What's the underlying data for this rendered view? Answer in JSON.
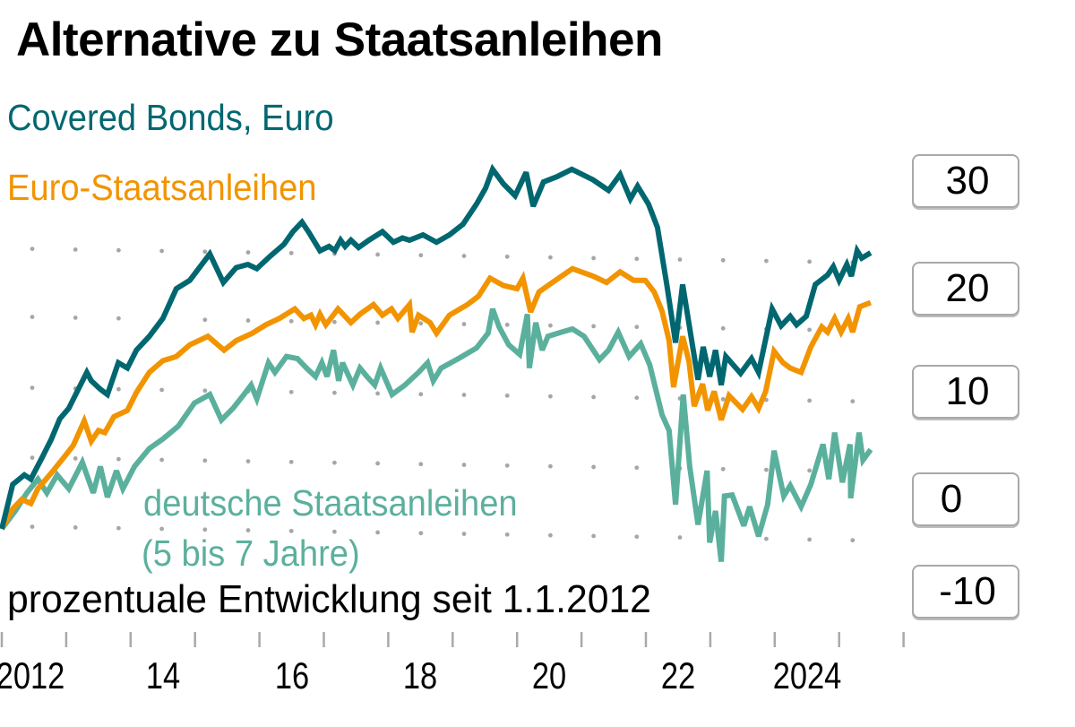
{
  "title": "Alternative zu Staatsanleihen",
  "subtitle": "prozentuale Entwicklung seit 1.1.2012",
  "chart_data": {
    "type": "line",
    "title": "Alternative zu Staatsanleihen",
    "ylabel": "prozentuale Entwicklung seit 1.1.2012",
    "xlim": [
      2012,
      2026
    ],
    "ylim": [
      -10,
      35
    ],
    "x_tick_labels": [
      {
        "year": 2012,
        "label": "2012"
      },
      {
        "year": 2014,
        "label": "14"
      },
      {
        "year": 2016,
        "label": "16"
      },
      {
        "year": 2018,
        "label": "18"
      },
      {
        "year": 2020,
        "label": "20"
      },
      {
        "year": 2022,
        "label": "22"
      },
      {
        "year": 2024,
        "label": "2024"
      }
    ],
    "y_tick_labels": [
      "30",
      "20",
      "10",
      "0",
      "-10"
    ],
    "grid": "dotted",
    "legend_placement": "inline-top-left",
    "series": [
      {
        "name": "Covered Bonds, Euro",
        "color": "#006770",
        "x": [
          2012.0,
          2012.17,
          2012.35,
          2012.45,
          2012.63,
          2012.77,
          2012.9,
          2013.04,
          2013.18,
          2013.32,
          2013.39,
          2013.53,
          2013.64,
          2013.81,
          2013.95,
          2014.09,
          2014.29,
          2014.5,
          2014.71,
          2014.92,
          2015.23,
          2015.44,
          2015.64,
          2015.82,
          2015.96,
          2016.17,
          2016.38,
          2016.52,
          2016.66,
          2016.77,
          2016.94,
          2017.08,
          2017.17,
          2017.26,
          2017.33,
          2017.42,
          2017.54,
          2017.7,
          2017.91,
          2018.08,
          2018.22,
          2018.33,
          2018.54,
          2018.75,
          2018.95,
          2019.16,
          2019.37,
          2019.51,
          2019.62,
          2019.79,
          2019.97,
          2020.14,
          2020.25,
          2020.41,
          2020.62,
          2020.85,
          2021.18,
          2021.42,
          2021.6,
          2021.76,
          2021.87,
          2022.04,
          2022.18,
          2022.33,
          2022.46,
          2022.57,
          2022.81,
          2022.89,
          2022.99,
          2023.08,
          2023.17,
          2023.24,
          2023.47,
          2023.64,
          2023.75,
          2023.96,
          2024.1,
          2024.24,
          2024.34,
          2024.49,
          2024.63,
          2024.82,
          2024.91,
          2025.0,
          2025.12,
          2025.19,
          2025.28,
          2025.35,
          2025.49
        ],
        "values": [
          0,
          4.2,
          5.1,
          4.7,
          6.8,
          8.5,
          10.4,
          11.4,
          13.1,
          14.8,
          14.0,
          13.2,
          12.7,
          15.7,
          15.2,
          16.9,
          18.2,
          19.9,
          22.7,
          23.5,
          26.0,
          23.3,
          24.7,
          25.0,
          24.6,
          25.8,
          26.9,
          28.1,
          29.0,
          28.0,
          26.3,
          26.7,
          26.3,
          27.3,
          26.7,
          27.3,
          26.6,
          27.3,
          28.1,
          27.1,
          27.5,
          27.3,
          27.8,
          27.1,
          27.8,
          28.8,
          30.7,
          32.2,
          34.0,
          32.6,
          31.5,
          33.7,
          30.5,
          32.8,
          33.3,
          34.0,
          33.0,
          32.0,
          33.5,
          31.2,
          32.4,
          30.7,
          28.5,
          22.9,
          17.6,
          23.1,
          14.1,
          17.2,
          14.4,
          16.9,
          13.6,
          16.3,
          14.7,
          16.1,
          14.8,
          20.8,
          19.2,
          20.1,
          19.3,
          20.1,
          23.1,
          24.0,
          24.8,
          23.5,
          25.0,
          23.9,
          26.3,
          25.6,
          26.1
        ]
      },
      {
        "name": "Euro-Staatsanleihen",
        "color": "#f29400",
        "x": [
          2012.0,
          2012.17,
          2012.31,
          2012.45,
          2012.56,
          2012.77,
          2012.97,
          2013.11,
          2013.28,
          2013.39,
          2013.5,
          2013.6,
          2013.74,
          2013.95,
          2014.09,
          2014.29,
          2014.5,
          2014.71,
          2014.92,
          2015.2,
          2015.45,
          2015.64,
          2015.89,
          2016.1,
          2016.31,
          2016.55,
          2016.69,
          2016.8,
          2016.87,
          2016.94,
          2017.03,
          2017.22,
          2017.42,
          2017.56,
          2017.77,
          2017.91,
          2018.05,
          2018.15,
          2018.33,
          2018.37,
          2018.47,
          2018.65,
          2018.75,
          2018.95,
          2019.23,
          2019.4,
          2019.58,
          2019.79,
          2020.0,
          2020.09,
          2020.21,
          2020.34,
          2020.55,
          2020.86,
          2021.18,
          2021.39,
          2021.6,
          2021.81,
          2021.99,
          2022.13,
          2022.25,
          2022.36,
          2022.43,
          2022.57,
          2022.67,
          2022.75,
          2022.88,
          2022.96,
          2023.06,
          2023.17,
          2023.29,
          2023.5,
          2023.64,
          2023.75,
          2023.86,
          2023.99,
          2024.13,
          2024.24,
          2024.41,
          2024.56,
          2024.73,
          2024.82,
          2024.93,
          2025.03,
          2025.14,
          2025.21,
          2025.32,
          2025.49
        ],
        "values": [
          0,
          1.9,
          2.8,
          2.4,
          3.8,
          5.3,
          6.8,
          7.9,
          10.2,
          8.3,
          9.3,
          9.1,
          10.6,
          11.2,
          12.9,
          14.8,
          15.9,
          16.3,
          17.4,
          18.2,
          16.9,
          17.8,
          18.5,
          19.3,
          19.9,
          20.8,
          19.9,
          20.2,
          19.3,
          20.3,
          19.3,
          20.8,
          19.5,
          20.3,
          21.2,
          20.2,
          20.8,
          19.9,
          21.2,
          18.6,
          20.2,
          19.5,
          18.5,
          20.2,
          21.2,
          22.0,
          23.7,
          23.0,
          22.7,
          23.7,
          20.5,
          22.4,
          23.3,
          24.6,
          23.9,
          23.3,
          24.3,
          23.5,
          23.5,
          22.4,
          20.6,
          17.8,
          13.4,
          18.2,
          15.8,
          11.6,
          13.7,
          11.2,
          13.0,
          10.3,
          12.6,
          11.3,
          12.5,
          11.4,
          13.0,
          16.8,
          15.7,
          15.2,
          14.8,
          17.2,
          19.1,
          18.6,
          19.9,
          18.6,
          19.9,
          18.6,
          21.0,
          21.4
        ]
      },
      {
        "name": "deutsche Staatsanleihen (5 bis 7 Jahre)",
        "color": "#5bb09d",
        "x": [
          2012.0,
          2012.21,
          2012.39,
          2012.56,
          2012.7,
          2012.86,
          2013.04,
          2013.25,
          2013.42,
          2013.53,
          2013.64,
          2013.78,
          2013.88,
          2014.06,
          2014.29,
          2014.5,
          2014.74,
          2014.99,
          2015.23,
          2015.41,
          2015.59,
          2015.76,
          2015.87,
          2015.96,
          2016.14,
          2016.24,
          2016.42,
          2016.59,
          2016.73,
          2016.87,
          2016.97,
          2017.05,
          2017.15,
          2017.23,
          2017.29,
          2017.45,
          2017.56,
          2017.67,
          2017.79,
          2017.88,
          2018.06,
          2018.26,
          2018.47,
          2018.61,
          2018.7,
          2018.82,
          2019.09,
          2019.37,
          2019.55,
          2019.62,
          2019.72,
          2019.87,
          2020.04,
          2020.16,
          2020.19,
          2020.29,
          2020.39,
          2020.48,
          2020.69,
          2020.86,
          2021.04,
          2021.28,
          2021.42,
          2021.57,
          2021.74,
          2021.92,
          2022.06,
          2022.25,
          2022.36,
          2022.46,
          2022.58,
          2022.68,
          2022.81,
          2022.95,
          2022.99,
          2023.08,
          2023.17,
          2023.22,
          2023.34,
          2023.52,
          2023.61,
          2023.75,
          2023.89,
          2023.99,
          2024.14,
          2024.24,
          2024.41,
          2024.56,
          2024.75,
          2024.84,
          2024.93,
          2025.05,
          2025.17,
          2025.18,
          2025.31,
          2025.37,
          2025.49
        ],
        "values": [
          0,
          1.7,
          3.4,
          4.7,
          3.4,
          5.1,
          3.8,
          6.3,
          3.4,
          5.9,
          3.0,
          5.5,
          3.8,
          5.9,
          7.6,
          8.5,
          9.7,
          11.9,
          12.7,
          10.3,
          11.4,
          12.7,
          13.6,
          12.3,
          15.7,
          14.8,
          16.3,
          16.1,
          15.2,
          14.4,
          15.7,
          14.4,
          16.9,
          14.0,
          15.7,
          13.6,
          15.2,
          14.4,
          13.6,
          15.2,
          12.7,
          13.6,
          14.8,
          15.7,
          14.0,
          15.2,
          16.1,
          17.1,
          18.5,
          20.8,
          19.1,
          17.4,
          16.5,
          20.3,
          15.2,
          19.5,
          16.9,
          18.2,
          18.6,
          18.9,
          18.2,
          16.0,
          16.9,
          18.6,
          16.3,
          17.5,
          15.5,
          10.8,
          9.3,
          2.3,
          12.7,
          5.9,
          0.4,
          5.5,
          -1.3,
          1.7,
          -3.1,
          3.1,
          3.2,
          0.3,
          2.1,
          -0.7,
          2.3,
          7.4,
          3.1,
          4.1,
          2.1,
          4.2,
          8.0,
          4.7,
          9.1,
          4.4,
          8.0,
          2.9,
          9.1,
          6.5,
          7.5
        ]
      }
    ]
  },
  "legend": {
    "covered": "Covered Bonds, Euro",
    "euro": "Euro-Staatsanleihen",
    "german_line1": "deutsche Staatsanleihen",
    "german_line2": "(5 bis 7 Jahre)"
  },
  "colors": {
    "covered": "#006770",
    "euro": "#f29400",
    "german": "#5bb09d",
    "grid": "#a6a6a6"
  }
}
